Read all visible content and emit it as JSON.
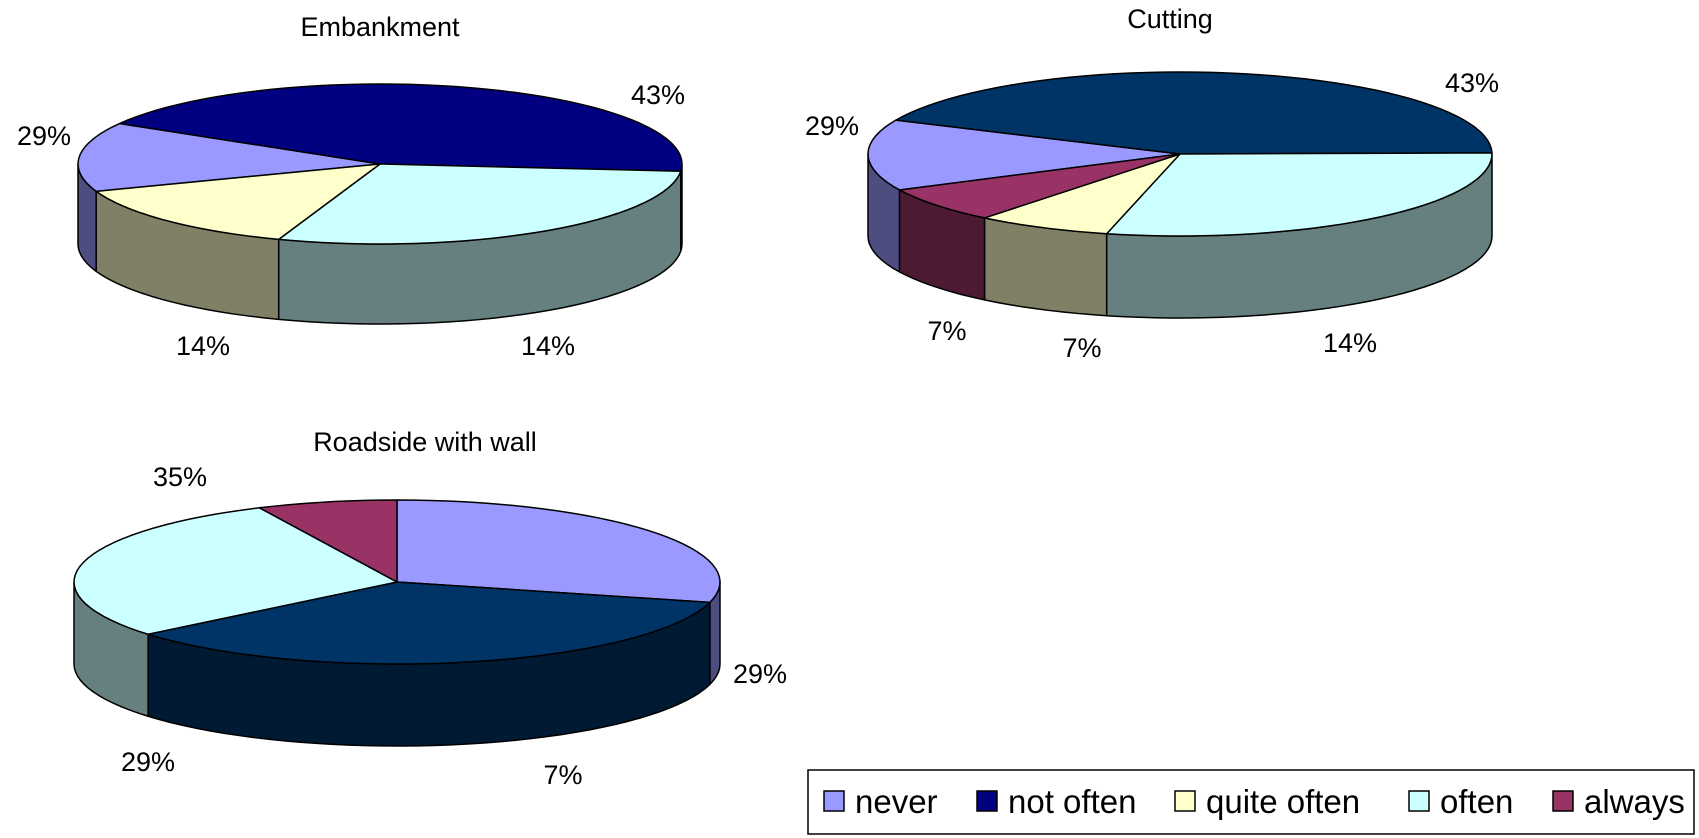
{
  "categories": [
    {
      "key": "never",
      "label": "never",
      "top": "#9999ff",
      "side": "#4d4d80"
    },
    {
      "key": "not_often",
      "label": "not often",
      "top": "#000080",
      "side": "#000040"
    },
    {
      "key": "quite_often",
      "label": "quite often",
      "top": "#ffffcc",
      "side": "#808066"
    },
    {
      "key": "often",
      "label": "often",
      "top": "#ccffff",
      "side": "#668080"
    },
    {
      "key": "always",
      "label": "always",
      "top": "#993366",
      "side": "#4d1a33"
    }
  ],
  "chart_data": [
    {
      "type": "pie",
      "title": "Embankment",
      "slices": [
        {
          "category": "never",
          "value": 14,
          "label": "14%"
        },
        {
          "category": "not_often",
          "value": 43,
          "label": "43%"
        },
        {
          "category": "often",
          "value": 29,
          "label": "29%"
        },
        {
          "category": "quite_often",
          "value": 14,
          "label": "14%"
        }
      ]
    },
    {
      "type": "pie",
      "title": "Cutting",
      "slices": [
        {
          "category": "never",
          "value": 14,
          "label": "14%"
        },
        {
          "category": "not_often",
          "value": 43,
          "label": "43%",
          "color": "#003366",
          "side_color": "#001a33"
        },
        {
          "category": "often",
          "value": 29,
          "label": "29%"
        },
        {
          "category": "quite_often",
          "value": 7,
          "label": "7%"
        },
        {
          "category": "always",
          "value": 7,
          "label": "7%"
        }
      ]
    },
    {
      "type": "pie",
      "title": "Roadside with wall",
      "slices": [
        {
          "category": "never",
          "value": 29,
          "label": "29%"
        },
        {
          "category": "not_often",
          "value": 35,
          "label": "35%",
          "color": "#003366",
          "side_color": "#001a33"
        },
        {
          "category": "often",
          "value": 29,
          "label": "29%"
        },
        {
          "category": "always",
          "value": 7,
          "label": "7%"
        }
      ]
    }
  ]
}
